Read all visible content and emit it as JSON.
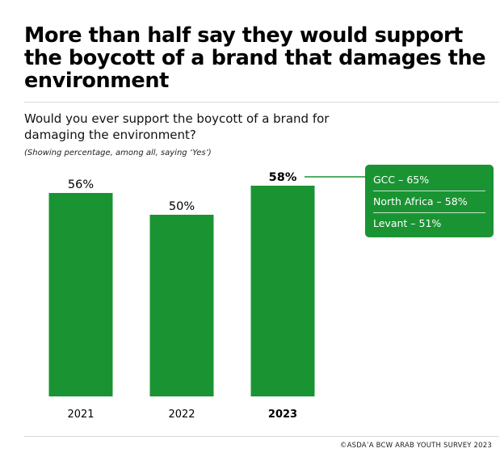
{
  "headline": "More than half say they would support the boycott of a brand that damages the environment",
  "question": "Would you ever support the boycott of a brand for damaging the environment?",
  "note": "(Showing percentage, among all, saying ‘Yes’)",
  "colors": {
    "bar": "#1a9433",
    "text": "#000000",
    "rule": "#d9d9d9"
  },
  "chart_data": {
    "type": "bar",
    "categories": [
      "2021",
      "2022",
      "2023"
    ],
    "values": [
      56,
      50,
      58
    ],
    "value_labels": [
      "56%",
      "50%",
      "58%"
    ],
    "highlighted_category": "2023",
    "ylim": [
      0,
      100
    ],
    "grid": false,
    "breakdown_2023": [
      {
        "label": "GCC  – 65%",
        "region": "GCC",
        "value": 65
      },
      {
        "label": "North Africa – 58%",
        "region": "North Africa",
        "value": 58
      },
      {
        "label": "Levant – 51%",
        "region": "Levant",
        "value": 51
      }
    ]
  },
  "footer": "©ASDA’A BCW ARAB YOUTH SURVEY 2023"
}
